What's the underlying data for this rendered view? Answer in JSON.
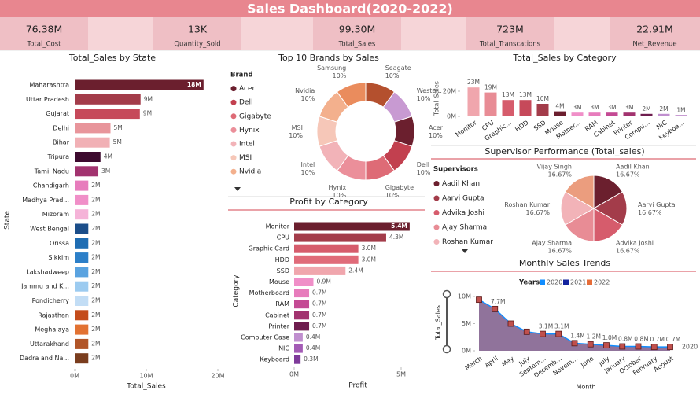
{
  "header": {
    "title": "Sales Dashboard(2020-2022)"
  },
  "kpis": [
    {
      "value": "76.38M",
      "label": "Total_Cost"
    },
    {
      "value": "13K",
      "label": "Quantity_Sold"
    },
    {
      "value": "99.30M",
      "label": "Total_Sales"
    },
    {
      "value": "723M",
      "label": "Total_Transcations"
    },
    {
      "value": "22.91M",
      "label": "Net_Revenue"
    }
  ],
  "chart_data": [
    {
      "type": "bar",
      "horizontal": true,
      "title": "Total_Sales by State",
      "x_label": "Total_Sales",
      "y_label": "State",
      "categories": [
        "Maharashtra",
        "Uttar Pradesh",
        "Gujarat",
        "Delhi",
        "Bihar",
        "Tripura",
        "Tamil Nadu",
        "Chandigarh",
        "Madhya Prad...",
        "Mizoram",
        "West Bengal",
        "Orissa",
        "Sikkim",
        "Lakshadweep",
        "Jammu and K...",
        "Pondicherry",
        "Rajasthan",
        "Meghalaya",
        "Uttarakhand",
        "Dadra and Na..."
      ],
      "values": [
        18,
        9.2,
        9.1,
        5.0,
        4.9,
        3.6,
        3.3,
        1.9,
        1.9,
        1.9,
        1.9,
        1.9,
        1.9,
        1.9,
        1.9,
        1.9,
        1.9,
        1.9,
        1.9,
        1.9
      ],
      "value_labels": [
        "18M",
        "9M",
        "9M",
        "5M",
        "5M",
        "4M",
        "3M",
        "2M",
        "2M",
        "2M",
        "2M",
        "2M",
        "2M",
        "2M",
        "2M",
        "2M",
        "2M",
        "2M",
        "2M",
        "2M"
      ],
      "colors": [
        "#6b1f2e",
        "#a33c4a",
        "#c6495a",
        "#e8959b",
        "#f1b0b5",
        "#3d0a2e",
        "#a2336f",
        "#e77cbc",
        "#f08fc8",
        "#f5b3d8",
        "#1b4e8a",
        "#1f6db3",
        "#2c7fc8",
        "#5aa3e0",
        "#9ccbf0",
        "#c2ddf5",
        "#c44c1b",
        "#e27232",
        "#b15528",
        "#7a3d1e"
      ],
      "xlim": [
        0,
        20
      ],
      "xticks": [
        {
          "value": 0,
          "label": "0M"
        },
        {
          "value": 10,
          "label": "10M"
        },
        {
          "value": 20,
          "label": "20M"
        }
      ]
    },
    {
      "type": "donut",
      "title": "Top 10 Brands by Sales",
      "legend": {
        "title": "Brand",
        "position": "left"
      },
      "categories": [
        "Acer",
        "Dell",
        "Gigabyte",
        "Hynix",
        "Intel",
        "MSI",
        "Nvidia",
        "Samsung",
        "Seagate",
        "Weste..."
      ],
      "values": [
        10,
        10,
        10,
        10,
        10,
        10,
        10,
        10,
        10,
        10
      ],
      "value_labels": [
        "10%",
        "10%",
        "10%",
        "10%",
        "10%",
        "10%",
        "10%",
        "10%",
        "10%",
        "10%"
      ],
      "colors": [
        "#6b1f2e",
        "#c2404f",
        "#de6b76",
        "#eb8f9a",
        "#f2b3b8",
        "#f6c7b8",
        "#f3b08d",
        "#ea8c5d",
        "#b4502e",
        "#c89ad2"
      ]
    },
    {
      "type": "bar",
      "horizontal": true,
      "title": "Profit by Category",
      "x_label": "Profit",
      "y_label": "Category",
      "categories": [
        "Monitor",
        "CPU",
        "Graphic Card",
        "HDD",
        "SSD",
        "Mouse",
        "Motherboard",
        "RAM",
        "Cabinet",
        "Printer",
        "Computer Case",
        "NIC",
        "Keyboard"
      ],
      "values": [
        5.4,
        4.3,
        3.0,
        3.0,
        2.4,
        0.9,
        0.7,
        0.7,
        0.7,
        0.7,
        0.4,
        0.4,
        0.3
      ],
      "value_labels": [
        "5.4M",
        "4.3M",
        "3.0M",
        "3.0M",
        "2.4M",
        "0.9M",
        "0.7M",
        "0.7M",
        "0.7M",
        "0.7M",
        "0.4M",
        "0.4M",
        "0.3M"
      ],
      "colors": [
        "#6b1f2e",
        "#a33c4a",
        "#d65c6c",
        "#e06b79",
        "#f0a6ad",
        "#f08fc8",
        "#e77cbc",
        "#c44a94",
        "#a2336f",
        "#6e1d4e",
        "#c08fcf",
        "#a35bb5",
        "#7e3a9a"
      ],
      "xlim": [
        0,
        5.5
      ],
      "xticks": [
        {
          "value": 0,
          "label": "0M"
        },
        {
          "value": 5,
          "label": "5M"
        }
      ]
    },
    {
      "type": "bar",
      "title": "Total_Sales by Category",
      "y_label": "Total_Sales",
      "categories": [
        "Monitor",
        "CPU",
        "Graphic...",
        "HDD",
        "SSD",
        "Mouse",
        "Mother...",
        "RAM",
        "Cabinet",
        "Printer",
        "Compu...",
        "NIC",
        "Keyboa..."
      ],
      "values": [
        23,
        19,
        13,
        13,
        10,
        4,
        3,
        3,
        3,
        3,
        2,
        2,
        1
      ],
      "value_labels": [
        "23M",
        "19M",
        "13M",
        "13M",
        "10M",
        "4M",
        "3M",
        "3M",
        "3M",
        "3M",
        "2M",
        "2M",
        "1M"
      ],
      "colors": [
        "#f0a6ad",
        "#e88c95",
        "#d65c6c",
        "#c6495a",
        "#a33c4a",
        "#6b1f2e",
        "#f08fc8",
        "#e77cbc",
        "#c44a94",
        "#a2336f",
        "#6e1d4e",
        "#c08fcf",
        "#a35bb5"
      ],
      "ylim": [
        0,
        25
      ],
      "yticks": [
        {
          "value": 0,
          "label": "0M"
        },
        {
          "value": 20,
          "label": "20M"
        }
      ]
    },
    {
      "type": "pie",
      "title": "Supervisor Performance (Total_sales)",
      "legend": {
        "title": "Supervisors",
        "position": "left"
      },
      "categories": [
        "Aadil Khan",
        "Aarvi Gupta",
        "Advika Joshi",
        "Ajay Sharma",
        "Roshan Kumar",
        "Vijay Singh"
      ],
      "values": [
        16.67,
        16.67,
        16.67,
        16.67,
        16.67,
        16.67
      ],
      "value_labels": [
        "16.67%",
        "16.67%",
        "16.67%",
        "16.67%",
        "16.67%",
        "16.67%"
      ],
      "colors": [
        "#6b1f2e",
        "#a33c4a",
        "#d65c6c",
        "#e88c95",
        "#f2b3b8",
        "#eb9d7e"
      ]
    },
    {
      "type": "area",
      "title": "Monthly Sales Trends",
      "x_label": "Month",
      "y_label": "Total_Sales",
      "legend": {
        "title": "Years",
        "entries": [
          {
            "name": "2020",
            "color": "#118dff"
          },
          {
            "name": "2021",
            "color": "#12239e"
          },
          {
            "name": "2022",
            "color": "#e66c37"
          }
        ]
      },
      "annotation": "2020",
      "categories": [
        "March",
        "April",
        "May",
        "July",
        "Septem...",
        "Decemb...",
        "Novem...",
        "June",
        "July",
        "January",
        "October",
        "February",
        "August"
      ],
      "values": [
        9.4,
        7.7,
        5.0,
        3.5,
        3.1,
        3.1,
        1.4,
        1.2,
        1.0,
        0.8,
        0.8,
        0.7,
        0.7
      ],
      "value_labels": [
        null,
        "7.7M",
        null,
        null,
        "3.1M",
        "3.1M",
        "1.4M",
        "1.2M",
        "1.0M",
        "0.8M",
        "0.8M",
        "0.7M",
        "0.7M"
      ],
      "color": "#7d5a8a",
      "line_color": "#118dff",
      "marker_color": "#c0504d",
      "ylim": [
        0,
        10
      ],
      "yticks": [
        {
          "value": 0,
          "label": "0M"
        },
        {
          "value": 5,
          "label": "5M"
        },
        {
          "value": 10,
          "label": "10M"
        }
      ]
    }
  ]
}
